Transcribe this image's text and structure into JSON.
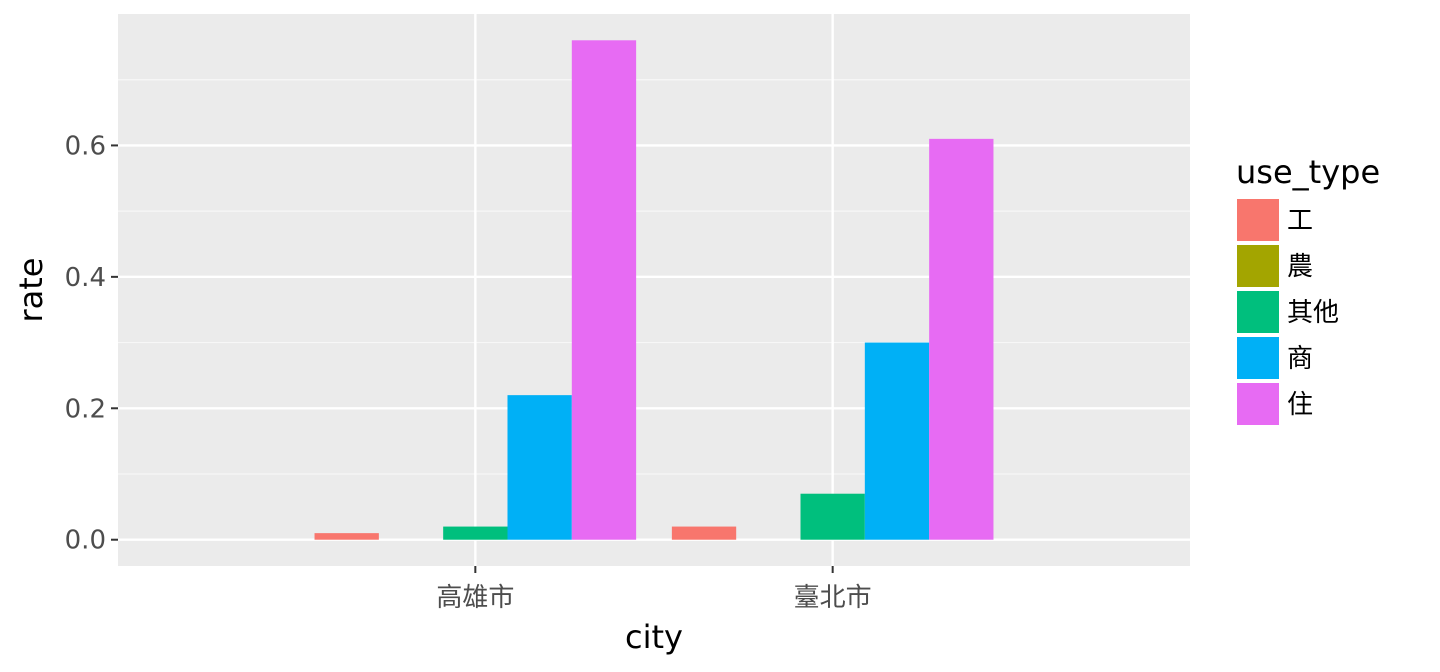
{
  "chart_data": {
    "type": "bar",
    "categories": [
      "高雄市",
      "臺北市"
    ],
    "series": [
      {
        "name": "工",
        "color": "#F8766D",
        "values": [
          0.01,
          0.02
        ]
      },
      {
        "name": "農",
        "color": "#A3A500",
        "values": [
          0.0,
          0.0
        ]
      },
      {
        "name": "其他",
        "color": "#00BF7D",
        "values": [
          0.02,
          0.07
        ]
      },
      {
        "name": "商",
        "color": "#00B0F6",
        "values": [
          0.22,
          0.3
        ]
      },
      {
        "name": "住",
        "color": "#E76BF3",
        "values": [
          0.76,
          0.61
        ]
      }
    ],
    "xlabel": "city",
    "ylabel": "rate",
    "ylim": [
      -0.04,
      0.8
    ],
    "yticks": [
      0.0,
      0.2,
      0.4,
      0.6
    ],
    "ytick_labels": [
      "0.0",
      "0.2",
      "0.4",
      "0.6"
    ],
    "grid": true,
    "legend_title": "use_type",
    "legend_position": "right"
  }
}
